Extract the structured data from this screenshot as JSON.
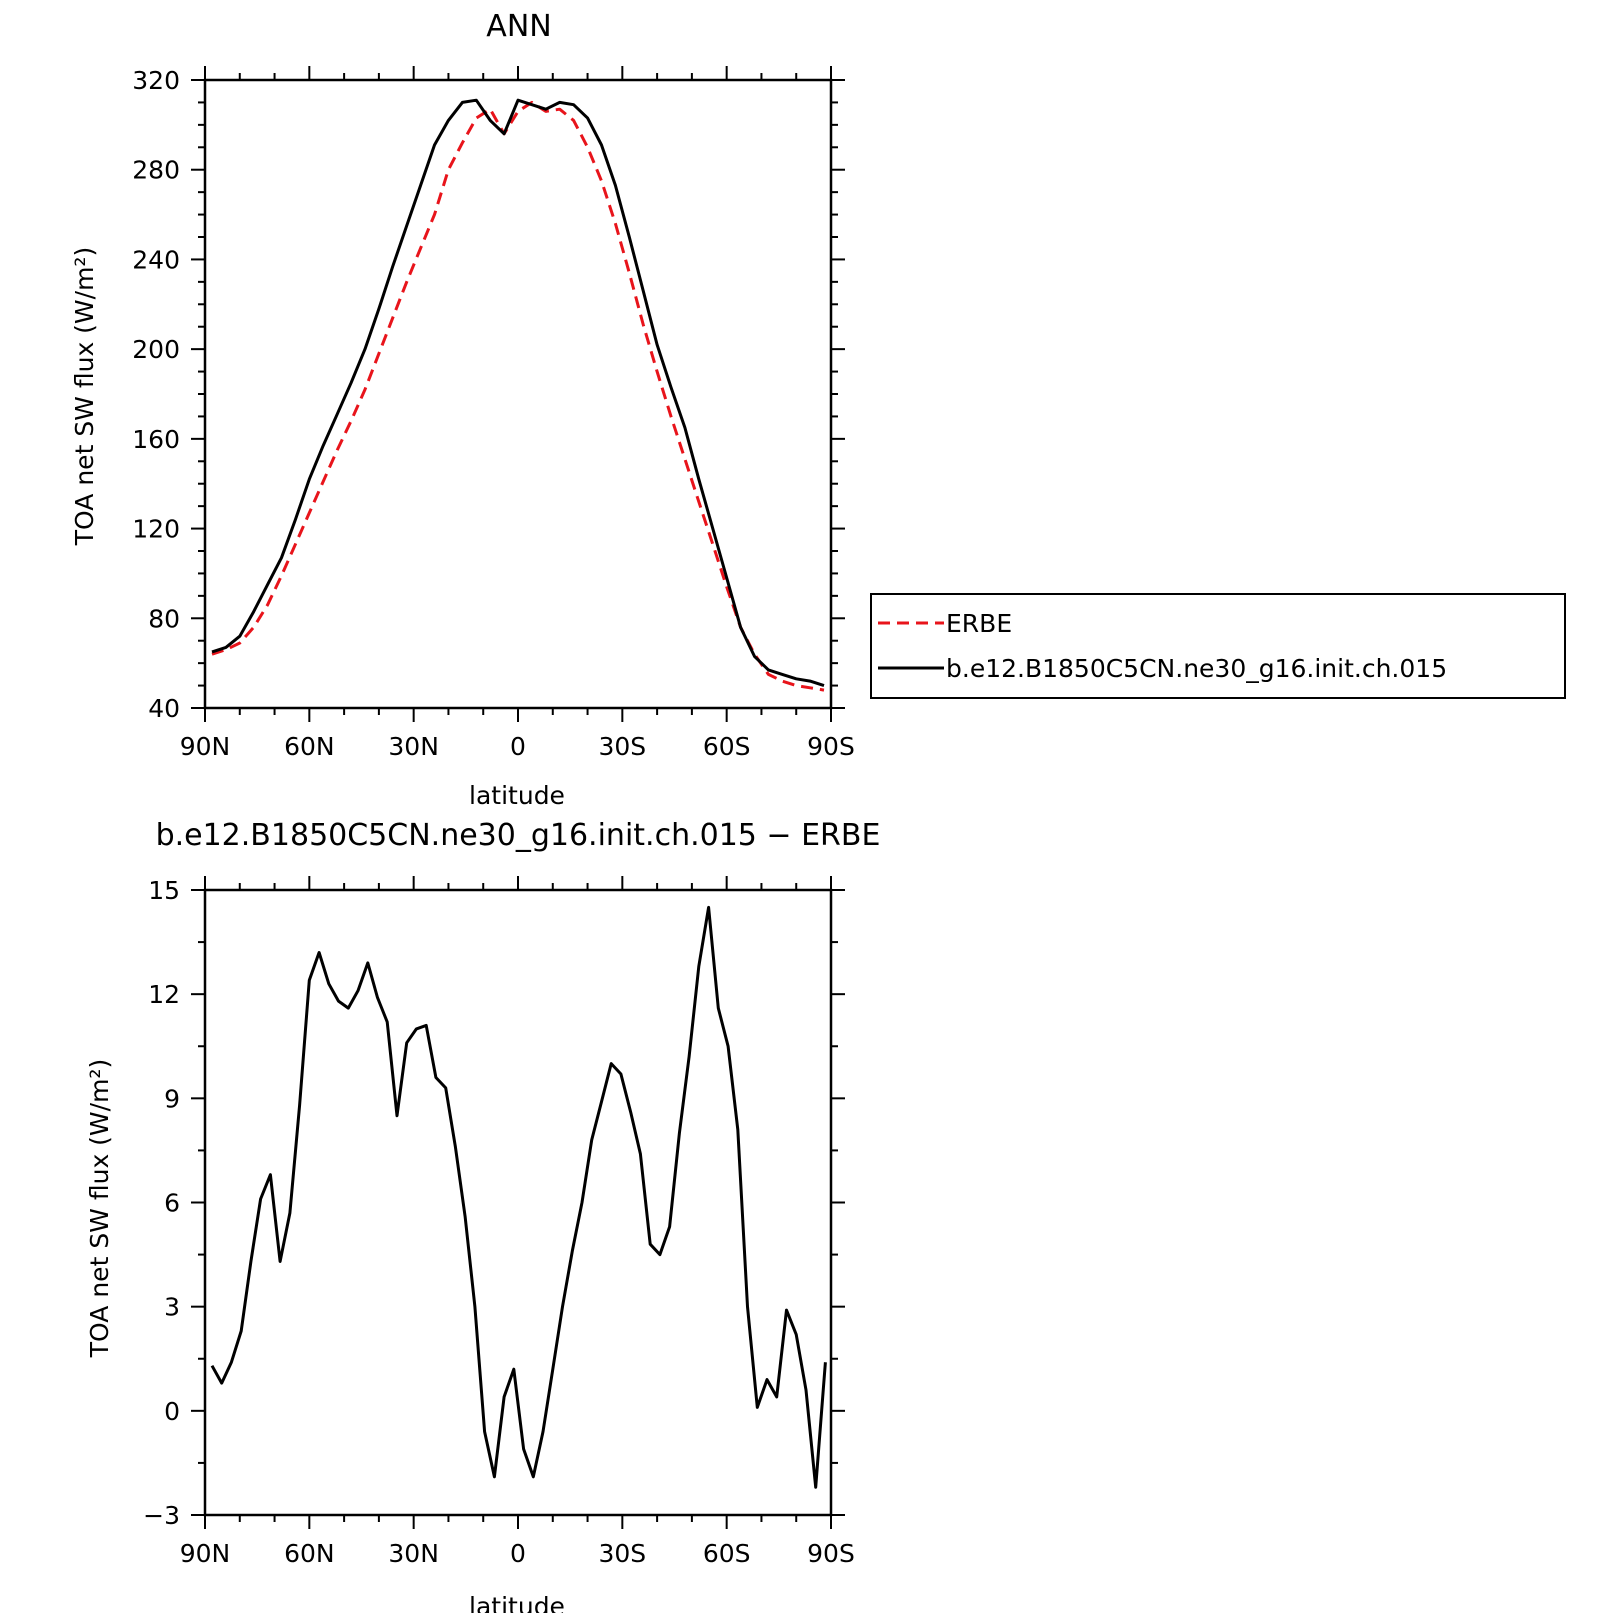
{
  "chart_data": [
    {
      "type": "line",
      "title": "ANN",
      "xlabel": "latitude",
      "ylabel": "TOA net SW flux (W/m²)",
      "x_tick_labels": [
        "90N",
        "60N",
        "30N",
        "0",
        "30S",
        "60S",
        "90S"
      ],
      "x_ticks": [
        90,
        60,
        30,
        0,
        -30,
        -60,
        -90
      ],
      "xlim": [
        90,
        -90
      ],
      "ylim": [
        40,
        320
      ],
      "y_ticks": [
        40,
        80,
        120,
        160,
        200,
        240,
        280,
        320
      ],
      "grid": false,
      "legend": "right",
      "series": [
        {
          "name": "ERBE",
          "color": "#e8141b",
          "dash": true,
          "x": [
            88,
            84,
            80,
            76,
            72,
            68,
            64,
            60,
            56,
            52,
            48,
            44,
            40,
            36,
            32,
            28,
            24,
            20,
            16,
            12,
            8,
            4,
            0,
            -4,
            -8,
            -12,
            -16,
            -20,
            -24,
            -28,
            -32,
            -36,
            -40,
            -44,
            -48,
            -52,
            -56,
            -60,
            -64,
            -68,
            -72,
            -76,
            -80,
            -84,
            -88
          ],
          "y": [
            64,
            66,
            69,
            76,
            86,
            99,
            113,
            127,
            141,
            155,
            168,
            182,
            198,
            214,
            230,
            245,
            260,
            280,
            292,
            303,
            307,
            296,
            306,
            310,
            306,
            307,
            302,
            290,
            275,
            256,
            234,
            211,
            190,
            170,
            151,
            132,
            113,
            94,
            76,
            64,
            55,
            52,
            50,
            49,
            48
          ]
        },
        {
          "name": "b.e12.B1850C5CN.ne30_g16.init.ch.015",
          "color": "#000000",
          "dash": false,
          "x": [
            88,
            84,
            80,
            76,
            72,
            68,
            64,
            60,
            56,
            52,
            48,
            44,
            40,
            36,
            32,
            28,
            24,
            20,
            16,
            12,
            8,
            4,
            0,
            -4,
            -8,
            -12,
            -16,
            -20,
            -24,
            -28,
            -32,
            -36,
            -40,
            -44,
            -48,
            -52,
            -56,
            -60,
            -64,
            -68,
            -72,
            -76,
            -80,
            -84,
            -88
          ],
          "y": [
            65,
            67,
            72,
            83,
            95,
            107,
            124,
            142,
            157,
            171,
            185,
            200,
            218,
            237,
            255,
            273,
            291,
            302,
            310,
            311,
            302,
            296,
            311,
            309,
            307,
            310,
            309,
            303,
            291,
            273,
            250,
            226,
            202,
            183,
            165,
            142,
            120,
            98,
            76,
            63,
            57,
            55,
            53,
            52,
            50
          ]
        }
      ]
    },
    {
      "type": "line",
      "title": "b.e12.B1850C5CN.ne30_g16.init.ch.015 − ERBE",
      "xlabel": "latitude",
      "ylabel": "TOA net SW flux (W/m²)",
      "x_tick_labels": [
        "90N",
        "60N",
        "30N",
        "0",
        "30S",
        "60S",
        "90S"
      ],
      "x_ticks": [
        90,
        60,
        30,
        0,
        -30,
        -60,
        -90
      ],
      "xlim": [
        90,
        -90
      ],
      "ylim": [
        -3,
        15
      ],
      "y_ticks": [
        -3,
        0,
        3,
        6,
        9,
        12,
        15
      ],
      "grid": false,
      "series": [
        {
          "color": "#000000",
          "dash": false,
          "x": [
            88.0,
            85.2,
            82.4,
            79.6,
            76.8,
            74.0,
            71.2,
            68.4,
            65.6,
            62.8,
            60.0,
            57.2,
            54.4,
            51.6,
            48.8,
            46.0,
            43.2,
            40.4,
            37.6,
            34.8,
            32.0,
            29.2,
            26.4,
            23.6,
            20.8,
            18.0,
            15.2,
            12.4,
            9.6,
            6.8,
            4.0,
            1.2,
            -1.6,
            -4.4,
            -7.2,
            -10.0,
            -12.8,
            -15.6,
            -18.4,
            -21.2,
            -24.0,
            -26.8,
            -29.6,
            -32.4,
            -35.2,
            -38.0,
            -40.8,
            -43.6,
            -46.4,
            -49.2,
            -52.0,
            -54.8,
            -57.6,
            -60.4,
            -63.2,
            -66.0,
            -68.8,
            -71.6,
            -74.4,
            -77.2,
            -80.0,
            -82.8,
            -85.6,
            -88.4
          ],
          "y": [
            1.3,
            0.8,
            1.4,
            2.3,
            4.3,
            6.1,
            6.8,
            4.3,
            5.7,
            8.8,
            12.4,
            13.2,
            12.3,
            11.8,
            11.6,
            12.1,
            12.9,
            11.9,
            11.2,
            8.5,
            10.6,
            11.0,
            11.1,
            9.6,
            9.3,
            7.6,
            5.6,
            3.0,
            -0.6,
            -1.9,
            0.4,
            1.2,
            -1.1,
            -1.9,
            -0.6,
            1.2,
            3.0,
            4.6,
            6.0,
            7.8,
            8.9,
            10.0,
            9.7,
            8.6,
            7.4,
            4.8,
            4.5,
            5.3,
            8.0,
            10.2,
            12.8,
            14.5,
            11.6,
            10.5,
            8.1,
            3.0,
            0.1,
            0.9,
            0.4,
            2.9,
            2.2,
            0.6,
            -2.2,
            1.4
          ]
        }
      ]
    }
  ]
}
